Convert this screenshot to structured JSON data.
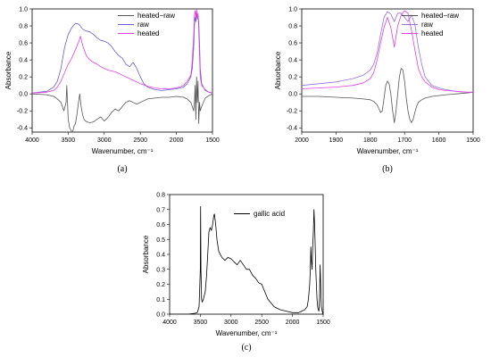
{
  "chart_data": [
    {
      "type": "line",
      "caption": "(a)",
      "xlabel": "Wavenumber, cm⁻¹",
      "ylabel": "Absorbance",
      "xlim": [
        4000,
        1500
      ],
      "ylim": [
        -0.45,
        1.0
      ],
      "x_reversed": true,
      "xticks": [
        4000,
        3500,
        3000,
        2500,
        2000,
        1500
      ],
      "yticks": [
        -0.4,
        -0.2,
        0.0,
        0.2,
        0.4,
        0.6,
        0.8,
        1.0
      ],
      "ytick_labels": [
        "-0.4",
        "-0.2",
        "0.0",
        "0.2",
        "0.4",
        "0.6",
        "0.8",
        "1.0"
      ],
      "legend_position": "top-right",
      "series": [
        {
          "name": "heated−raw",
          "color": "#555555",
          "x": [
            4000,
            3800,
            3700,
            3650,
            3600,
            3560,
            3530,
            3520,
            3500,
            3480,
            3460,
            3440,
            3420,
            3400,
            3380,
            3360,
            3340,
            3320,
            3300,
            3280,
            3260,
            3240,
            3200,
            3150,
            3100,
            3050,
            3000,
            2950,
            2900,
            2850,
            2800,
            2750,
            2700,
            2650,
            2600,
            2550,
            2500,
            2450,
            2400,
            2300,
            2200,
            2100,
            2000,
            1900,
            1850,
            1800,
            1780,
            1760,
            1750,
            1740,
            1730,
            1720,
            1710,
            1700,
            1690,
            1680,
            1670,
            1650,
            1600,
            1550,
            1500
          ],
          "y": [
            0.0,
            -0.01,
            -0.03,
            -0.06,
            -0.1,
            -0.2,
            -0.1,
            0.1,
            -0.3,
            -0.4,
            -0.43,
            -0.46,
            -0.38,
            -0.35,
            -0.25,
            -0.12,
            0.0,
            -0.15,
            -0.25,
            -0.3,
            -0.32,
            -0.33,
            -0.34,
            -0.33,
            -0.3,
            -0.27,
            -0.32,
            -0.28,
            -0.22,
            -0.18,
            -0.2,
            -0.15,
            -0.1,
            -0.08,
            -0.1,
            -0.12,
            -0.1,
            -0.08,
            -0.06,
            -0.05,
            -0.04,
            -0.04,
            -0.03,
            -0.04,
            -0.06,
            -0.1,
            -0.15,
            -0.2,
            -0.1,
            0.1,
            -0.3,
            0.2,
            -0.1,
            0.15,
            -0.35,
            -0.1,
            -0.2,
            -0.15,
            -0.05,
            -0.02,
            0.0
          ]
        },
        {
          "name": "raw",
          "color": "#6a5acd",
          "x": [
            4000,
            3800,
            3700,
            3650,
            3600,
            3550,
            3500,
            3450,
            3400,
            3350,
            3300,
            3250,
            3200,
            3150,
            3100,
            3050,
            3000,
            2950,
            2900,
            2850,
            2800,
            2750,
            2700,
            2650,
            2600,
            2550,
            2500,
            2450,
            2400,
            2300,
            2200,
            2100,
            2000,
            1900,
            1850,
            1800,
            1780,
            1760,
            1750,
            1740,
            1730,
            1720,
            1710,
            1700,
            1690,
            1680,
            1670,
            1650,
            1600,
            1550,
            1500
          ],
          "y": [
            0.01,
            0.03,
            0.08,
            0.15,
            0.3,
            0.55,
            0.7,
            0.78,
            0.83,
            0.82,
            0.76,
            0.74,
            0.73,
            0.7,
            0.66,
            0.63,
            0.62,
            0.6,
            0.56,
            0.5,
            0.45,
            0.42,
            0.35,
            0.32,
            0.37,
            0.3,
            0.2,
            0.12,
            0.08,
            0.05,
            0.04,
            0.05,
            0.06,
            0.08,
            0.12,
            0.2,
            0.3,
            0.55,
            0.8,
            0.9,
            0.85,
            0.95,
            0.88,
            0.92,
            0.85,
            0.6,
            0.3,
            0.12,
            0.04,
            0.02,
            0.01
          ]
        },
        {
          "name": "heated",
          "color": "#e040e0",
          "x": [
            4000,
            3800,
            3700,
            3650,
            3600,
            3550,
            3500,
            3450,
            3400,
            3350,
            3330,
            3300,
            3250,
            3200,
            3150,
            3100,
            3050,
            3000,
            2950,
            2900,
            2850,
            2800,
            2750,
            2700,
            2650,
            2600,
            2500,
            2400,
            2300,
            2200,
            2100,
            2000,
            1900,
            1850,
            1800,
            1780,
            1760,
            1750,
            1740,
            1730,
            1720,
            1710,
            1700,
            1690,
            1680,
            1670,
            1650,
            1600,
            1550,
            1500
          ],
          "y": [
            0.01,
            0.02,
            0.04,
            0.08,
            0.15,
            0.25,
            0.35,
            0.42,
            0.52,
            0.62,
            0.68,
            0.57,
            0.45,
            0.4,
            0.37,
            0.35,
            0.32,
            0.3,
            0.28,
            0.27,
            0.26,
            0.24,
            0.22,
            0.2,
            0.18,
            0.16,
            0.12,
            0.09,
            0.07,
            0.06,
            0.06,
            0.07,
            0.1,
            0.15,
            0.22,
            0.4,
            0.7,
            0.92,
            0.98,
            0.9,
            1.0,
            0.88,
            0.95,
            0.75,
            0.45,
            0.2,
            0.1,
            0.05,
            0.02,
            0.01
          ]
        }
      ]
    },
    {
      "type": "line",
      "caption": "(b)",
      "xlabel": "Wavenumber, cm⁻¹",
      "ylabel": "Absorbance",
      "xlim": [
        2000,
        1500
      ],
      "ylim": [
        -0.45,
        1.0
      ],
      "x_reversed": true,
      "xticks": [
        2000,
        1900,
        1800,
        1700,
        1600,
        1500
      ],
      "yticks": [
        -0.4,
        -0.2,
        0.0,
        0.2,
        0.4,
        0.6,
        0.8,
        1.0
      ],
      "ytick_labels": [
        "-0.4",
        "-0.2",
        "0.0",
        "0.2",
        "0.4",
        "0.6",
        "0.8",
        "1.0"
      ],
      "legend_position": "top-right",
      "series": [
        {
          "name": "heated−raw",
          "color": "#555555",
          "x": [
            2000,
            1950,
            1900,
            1850,
            1820,
            1800,
            1790,
            1780,
            1770,
            1765,
            1760,
            1755,
            1750,
            1745,
            1740,
            1735,
            1730,
            1725,
            1720,
            1715,
            1710,
            1705,
            1700,
            1695,
            1690,
            1685,
            1680,
            1675,
            1670,
            1665,
            1660,
            1650,
            1640,
            1620,
            1600,
            1580,
            1550,
            1520,
            1500
          ],
          "y": [
            -0.03,
            -0.03,
            -0.04,
            -0.05,
            -0.06,
            -0.07,
            -0.09,
            -0.13,
            -0.22,
            -0.2,
            -0.05,
            0.1,
            0.15,
            0.12,
            0.0,
            -0.2,
            -0.34,
            -0.2,
            0.0,
            0.2,
            0.3,
            0.28,
            0.15,
            -0.05,
            -0.2,
            -0.3,
            -0.34,
            -0.3,
            -0.22,
            -0.15,
            -0.1,
            -0.07,
            -0.05,
            -0.03,
            -0.02,
            -0.01,
            0.0,
            0.01,
            0.02
          ]
        },
        {
          "name": "raw",
          "color": "#9370db",
          "x": [
            2000,
            1950,
            1900,
            1850,
            1820,
            1800,
            1790,
            1780,
            1770,
            1760,
            1750,
            1740,
            1730,
            1720,
            1710,
            1700,
            1690,
            1680,
            1670,
            1660,
            1650,
            1640,
            1620,
            1600,
            1580,
            1550,
            1520,
            1500
          ],
          "y": [
            0.1,
            0.12,
            0.14,
            0.18,
            0.22,
            0.28,
            0.35,
            0.48,
            0.7,
            0.9,
            0.97,
            0.94,
            0.85,
            0.95,
            0.95,
            0.9,
            0.85,
            0.93,
            0.82,
            0.55,
            0.35,
            0.2,
            0.1,
            0.07,
            0.05,
            0.03,
            0.02,
            0.02
          ]
        },
        {
          "name": "heated",
          "color": "#e040e0",
          "x": [
            2000,
            1950,
            1900,
            1850,
            1820,
            1800,
            1790,
            1780,
            1770,
            1760,
            1750,
            1740,
            1730,
            1720,
            1710,
            1700,
            1690,
            1680,
            1670,
            1660,
            1650,
            1640,
            1620,
            1600,
            1580,
            1550,
            1520,
            1500
          ],
          "y": [
            0.06,
            0.07,
            0.08,
            0.1,
            0.13,
            0.18,
            0.25,
            0.4,
            0.6,
            0.78,
            0.9,
            0.78,
            0.55,
            0.8,
            0.93,
            0.98,
            0.95,
            0.75,
            0.52,
            0.3,
            0.2,
            0.14,
            0.08,
            0.05,
            0.04,
            0.03,
            0.02,
            0.02
          ]
        }
      ]
    },
    {
      "type": "line",
      "caption": "(c)",
      "xlabel": "Wavenumber, cm⁻¹",
      "ylabel": "Absorbance",
      "xlim": [
        4000,
        1500
      ],
      "ylim": [
        0.0,
        0.8
      ],
      "x_reversed": true,
      "xticks": [
        4000,
        3500,
        3000,
        2500,
        2000,
        1500
      ],
      "yticks": [
        0.0,
        0.1,
        0.2,
        0.3,
        0.4,
        0.5,
        0.6,
        0.7,
        0.8
      ],
      "ytick_labels": [
        "0.0",
        "0.1",
        "0.2",
        "0.3",
        "0.4",
        "0.5",
        "0.6",
        "0.7",
        "0.8"
      ],
      "legend_position": "top-right",
      "series": [
        {
          "name": "gallic acid",
          "color": "#000000",
          "x": [
            4000,
            3800,
            3700,
            3600,
            3550,
            3520,
            3500,
            3495,
            3490,
            3480,
            3470,
            3450,
            3420,
            3400,
            3380,
            3360,
            3340,
            3320,
            3300,
            3280,
            3270,
            3250,
            3230,
            3200,
            3150,
            3100,
            3050,
            3000,
            2950,
            2900,
            2850,
            2800,
            2750,
            2700,
            2650,
            2600,
            2550,
            2500,
            2450,
            2400,
            2300,
            2200,
            2100,
            2000,
            1900,
            1850,
            1800,
            1760,
            1740,
            1720,
            1710,
            1700,
            1690,
            1680,
            1670,
            1660,
            1650,
            1640,
            1630,
            1620,
            1610,
            1600,
            1590,
            1580,
            1570,
            1560,
            1550,
            1530,
            1510,
            1500
          ],
          "y": [
            0.0,
            0.0,
            0.0,
            0.005,
            0.01,
            0.05,
            0.3,
            0.72,
            0.3,
            0.1,
            0.08,
            0.1,
            0.15,
            0.25,
            0.4,
            0.55,
            0.58,
            0.56,
            0.6,
            0.66,
            0.67,
            0.6,
            0.5,
            0.42,
            0.38,
            0.36,
            0.38,
            0.37,
            0.35,
            0.33,
            0.36,
            0.33,
            0.3,
            0.3,
            0.26,
            0.24,
            0.21,
            0.2,
            0.15,
            0.1,
            0.05,
            0.03,
            0.02,
            0.01,
            0.01,
            0.02,
            0.03,
            0.05,
            0.1,
            0.2,
            0.3,
            0.45,
            0.35,
            0.3,
            0.45,
            0.55,
            0.7,
            0.6,
            0.45,
            0.3,
            0.2,
            0.1,
            0.05,
            0.03,
            0.02,
            0.1,
            0.33,
            0.05,
            0.01,
            0.0
          ]
        }
      ]
    }
  ]
}
